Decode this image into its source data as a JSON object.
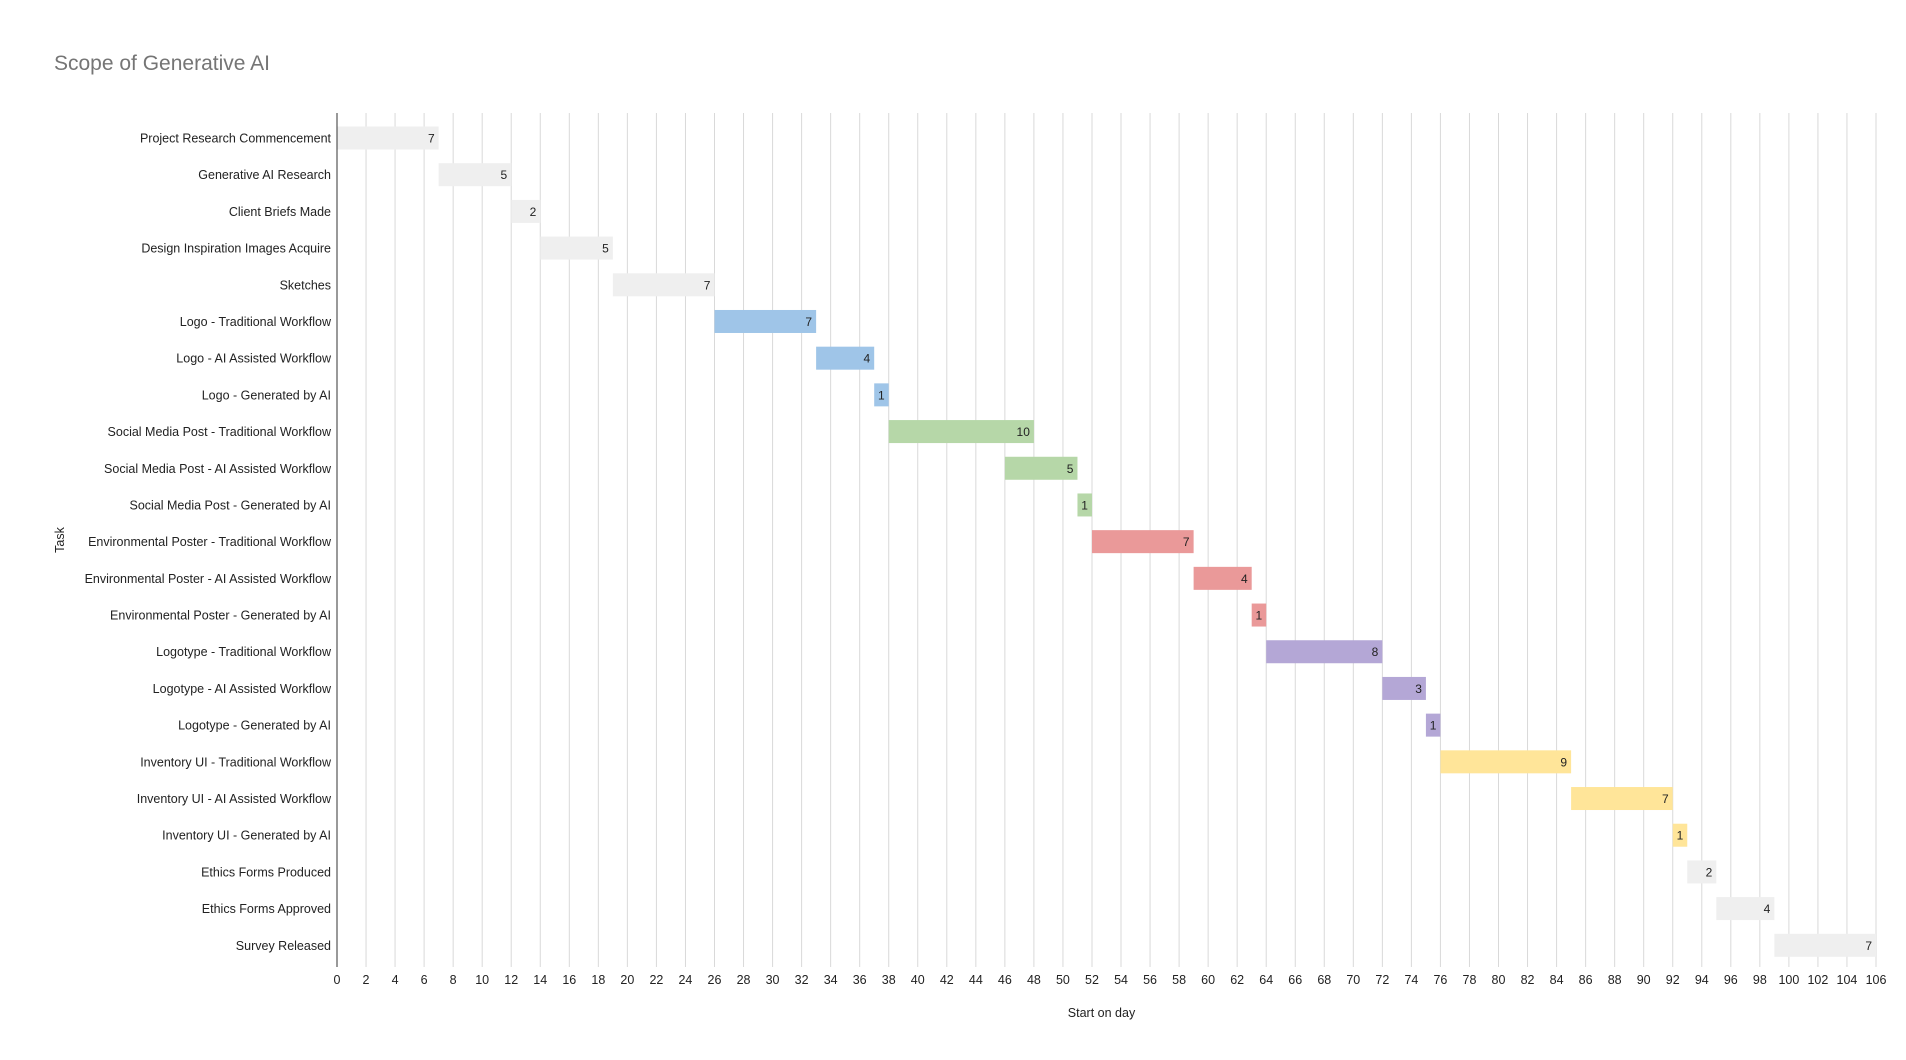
{
  "chart_data": {
    "type": "bar",
    "subtype": "gantt",
    "title": "Scope of Generative AI",
    "xlabel": "Start on day",
    "ylabel": "Task",
    "xlim": [
      0,
      106
    ],
    "x_tick_step": 2,
    "grid": true,
    "colors": {
      "grey": "#efefef",
      "blue": "#9fc5e8",
      "green": "#b6d7a8",
      "red": "#ea9999",
      "purple": "#b4a7d6",
      "yellow": "#ffe599"
    },
    "tasks": [
      {
        "label": "Project Research Commencement",
        "start": 0,
        "duration": 7,
        "color": "grey"
      },
      {
        "label": "Generative AI Research",
        "start": 7,
        "duration": 5,
        "color": "grey"
      },
      {
        "label": "Client Briefs Made",
        "start": 12,
        "duration": 2,
        "color": "grey"
      },
      {
        "label": "Design Inspiration Images Acquire",
        "start": 14,
        "duration": 5,
        "color": "grey"
      },
      {
        "label": "Sketches",
        "start": 19,
        "duration": 7,
        "color": "grey"
      },
      {
        "label": "Logo - Traditional Workflow",
        "start": 26,
        "duration": 7,
        "color": "blue"
      },
      {
        "label": "Logo - AI Assisted Workflow",
        "start": 33,
        "duration": 4,
        "color": "blue"
      },
      {
        "label": "Logo - Generated by AI",
        "start": 37,
        "duration": 1,
        "color": "blue"
      },
      {
        "label": "Social Media Post - Traditional Workflow",
        "start": 38,
        "duration": 10,
        "color": "green"
      },
      {
        "label": "Social Media Post - AI Assisted Workflow",
        "start": 46,
        "duration": 5,
        "color": "green"
      },
      {
        "label": "Social Media Post - Generated by AI",
        "start": 51,
        "duration": 1,
        "color": "green"
      },
      {
        "label": "Environmental Poster - Traditional Workflow",
        "start": 52,
        "duration": 7,
        "color": "red"
      },
      {
        "label": "Environmental Poster - AI Assisted Workflow",
        "start": 59,
        "duration": 4,
        "color": "red"
      },
      {
        "label": "Environmental Poster - Generated by AI",
        "start": 63,
        "duration": 1,
        "color": "red"
      },
      {
        "label": "Logotype - Traditional Workflow",
        "start": 64,
        "duration": 8,
        "color": "purple"
      },
      {
        "label": "Logotype - AI Assisted Workflow",
        "start": 72,
        "duration": 3,
        "color": "purple"
      },
      {
        "label": "Logotype - Generated by AI",
        "start": 75,
        "duration": 1,
        "color": "purple"
      },
      {
        "label": "Inventory UI - Traditional Workflow",
        "start": 76,
        "duration": 9,
        "color": "yellow"
      },
      {
        "label": "Inventory UI - AI Assisted Workflow",
        "start": 85,
        "duration": 7,
        "color": "yellow"
      },
      {
        "label": "Inventory UI - Generated by AI",
        "start": 92,
        "duration": 1,
        "color": "yellow"
      },
      {
        "label": "Ethics Forms Produced",
        "start": 93,
        "duration": 2,
        "color": "grey"
      },
      {
        "label": "Ethics Forms Approved",
        "start": 95,
        "duration": 4,
        "color": "grey"
      },
      {
        "label": "Survey Released",
        "start": 99,
        "duration": 7,
        "color": "grey"
      }
    ]
  }
}
